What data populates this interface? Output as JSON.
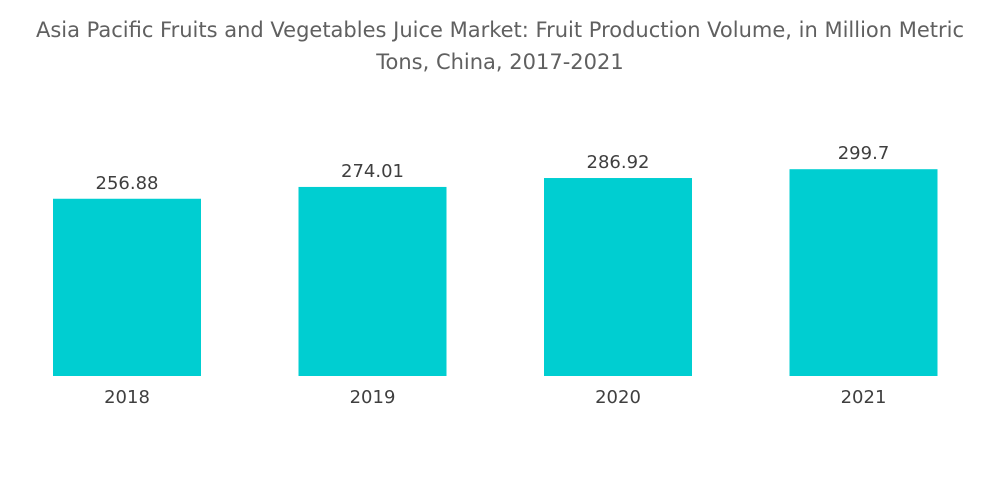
{
  "title_line1": "Asia Pacific Fruits and Vegetables Juice Market: Fruit Production Volume, in Million Metric",
  "title_line2": "Tons, China, 2017-2021",
  "chart_data": {
    "type": "bar",
    "title": "Asia Pacific Fruits and Vegetables Juice Market: Fruit Production Volume, in Million Metric Tons, China, 2017-2021",
    "categories": [
      "2018",
      "2019",
      "2020",
      "2021"
    ],
    "values": [
      256.88,
      274.01,
      286.92,
      299.7
    ],
    "value_labels": [
      "256.88",
      "274.01",
      "286.92",
      "299.7"
    ],
    "xlabel": "",
    "ylabel": "",
    "ylim": [
      0,
      300
    ],
    "grid": false,
    "legend": "none",
    "bar_color": "#00CED1"
  }
}
